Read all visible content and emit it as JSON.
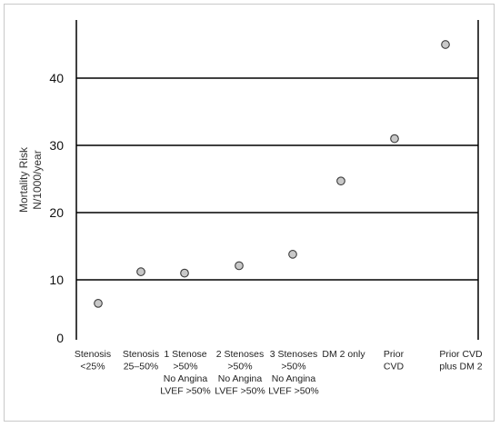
{
  "chart_data": {
    "type": "scatter",
    "ylabel": [
      "Mortality Risk",
      "N/1000/year"
    ],
    "ylim": [
      0,
      50
    ],
    "yticks": [
      0,
      10,
      20,
      30,
      40
    ],
    "grid": "horizontal",
    "categories": [
      [
        "Stenosis",
        "<25%"
      ],
      [
        "Stenosis",
        "25–50%"
      ],
      [
        "1 Stenose",
        ">50%",
        "No Angina",
        "LVEF >50%"
      ],
      [
        "2 Stenoses",
        ">50%",
        "No Angina",
        "LVEF >50%"
      ],
      [
        "3 Stenoses",
        ">50%",
        "No Angina",
        "LVEF >50%"
      ],
      [
        "DM 2 only"
      ],
      [
        "Prior",
        "CVD"
      ],
      [
        "Prior      CVD",
        "plus DM 2"
      ]
    ],
    "values": [
      6.5,
      11.2,
      11.0,
      12.1,
      13.8,
      24.7,
      31.0,
      45.0
    ],
    "marker_color": "#c8c8c8",
    "marker_edge": "#3a3a3a"
  }
}
